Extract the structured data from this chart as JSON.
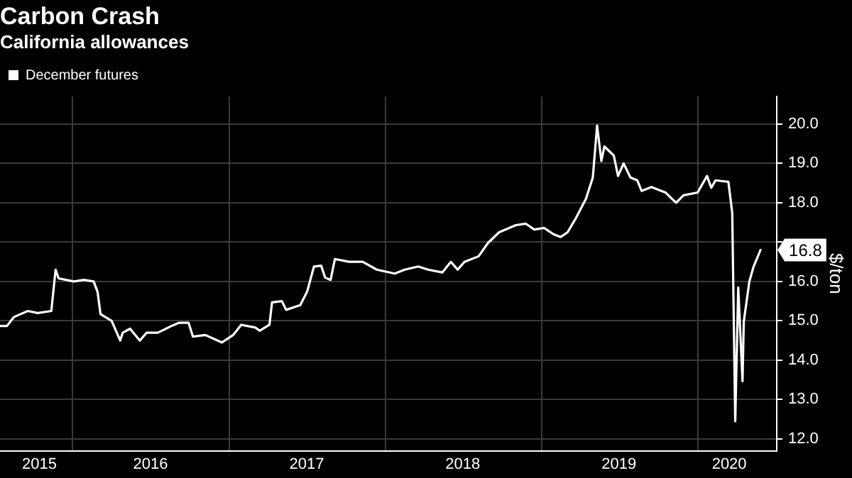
{
  "chart_data": {
    "type": "line",
    "title": "Carbon Crash",
    "subtitle": "California allowances",
    "ylabel": "$/ton",
    "legend": "top left",
    "grid": true,
    "marker": "none",
    "line_style": "solid",
    "x": [
      "2015-07-15",
      "2015-07-31",
      "2015-08-17",
      "2015-09-18",
      "2015-10-11",
      "2015-11-12",
      "2015-11-22",
      "2015-11-29",
      "2016-01-04",
      "2016-01-27",
      "2016-02-19",
      "2016-02-28",
      "2016-03-06",
      "2016-04-01",
      "2016-04-21",
      "2016-04-27",
      "2016-05-14",
      "2016-06-06",
      "2016-06-22",
      "2016-07-18",
      "2016-08-19",
      "2016-09-05",
      "2016-09-28",
      "2016-10-08",
      "2016-11-06",
      "2016-12-15",
      "2017-01-10",
      "2017-01-29",
      "2017-03-03",
      "2017-03-13",
      "2017-04-05",
      "2017-04-11",
      "2017-05-04",
      "2017-05-14",
      "2017-06-16",
      "2017-07-02",
      "2017-07-18",
      "2017-08-04",
      "2017-08-13",
      "2017-08-26",
      "2017-09-05",
      "2017-10-08",
      "2017-11-09",
      "2017-12-12",
      "2018-01-23",
      "2018-02-15",
      "2018-03-19",
      "2018-04-11",
      "2018-05-14",
      "2018-06-03",
      "2018-06-19",
      "2018-07-05",
      "2018-08-07",
      "2018-08-29",
      "2018-09-24",
      "2018-11-02",
      "2018-11-25",
      "2018-12-15",
      "2019-01-07",
      "2019-01-29",
      "2019-02-15",
      "2019-03-03",
      "2019-03-23",
      "2019-04-15",
      "2019-05-01",
      "2019-05-11",
      "2019-05-21",
      "2019-05-28",
      "2019-06-19",
      "2019-06-29",
      "2019-07-12",
      "2019-07-28",
      "2019-08-13",
      "2019-08-23",
      "2019-09-15",
      "2019-10-18",
      "2019-11-02",
      "2019-11-12",
      "2019-11-29",
      "2020-01-01",
      "2020-01-23",
      "2020-02-02",
      "2020-02-12",
      "2020-03-13",
      "2020-03-22",
      "2020-03-29",
      "2020-04-05",
      "2020-04-15",
      "2020-04-18",
      "2020-05-01",
      "2020-05-11",
      "2020-05-27"
    ],
    "series": [
      {
        "name": "December futures",
        "color": "#ffffff",
        "values": [
          14.87,
          14.87,
          15.1,
          15.25,
          15.2,
          15.25,
          16.3,
          16.08,
          16.0,
          16.04,
          16.0,
          15.74,
          15.17,
          15.0,
          14.5,
          14.7,
          14.8,
          14.5,
          14.7,
          14.7,
          14.87,
          14.95,
          14.95,
          14.6,
          14.64,
          14.45,
          14.64,
          14.9,
          14.83,
          14.75,
          14.9,
          15.47,
          15.5,
          15.28,
          15.4,
          15.74,
          16.38,
          16.4,
          16.1,
          16.04,
          16.57,
          16.5,
          16.5,
          16.3,
          16.2,
          16.3,
          16.38,
          16.3,
          16.23,
          16.5,
          16.3,
          16.5,
          16.64,
          16.98,
          17.25,
          17.43,
          17.47,
          17.32,
          17.36,
          17.2,
          17.13,
          17.25,
          17.62,
          18.1,
          18.64,
          19.96,
          19.06,
          19.43,
          19.2,
          18.68,
          19.0,
          18.64,
          18.57,
          18.3,
          18.4,
          18.26,
          18.1,
          18.0,
          18.19,
          18.26,
          18.68,
          18.38,
          18.57,
          18.53,
          17.74,
          12.45,
          15.85,
          13.47,
          14.98,
          16.0,
          16.38,
          16.8
        ]
      }
    ],
    "xlim": [
      "2015-07-15",
      "2020-07-04"
    ],
    "xticks": [
      {
        "value": "2015-10-15",
        "label": "2015"
      },
      {
        "value": "2016-01-01",
        "label": null
      },
      {
        "value": "2016-07-01",
        "label": "2016"
      },
      {
        "value": "2017-01-01",
        "label": null
      },
      {
        "value": "2017-07-01",
        "label": "2017"
      },
      {
        "value": "2018-01-01",
        "label": null
      },
      {
        "value": "2018-07-01",
        "label": "2018"
      },
      {
        "value": "2019-01-01",
        "label": null
      },
      {
        "value": "2019-07-01",
        "label": "2019"
      },
      {
        "value": "2020-01-01",
        "label": null
      },
      {
        "value": "2020-03-15",
        "label": "2020"
      }
    ],
    "ylim": [
      11.7,
      20.7
    ],
    "yticks": [
      {
        "value": 12,
        "label": "12.0"
      },
      {
        "value": 13,
        "label": "13.0"
      },
      {
        "value": 14,
        "label": "14.0"
      },
      {
        "value": 15,
        "label": "15.0"
      },
      {
        "value": 16,
        "label": "16.0"
      },
      {
        "value": 17,
        "label": null
      },
      {
        "value": 18,
        "label": "18.0"
      },
      {
        "value": 19,
        "label": "19.0"
      },
      {
        "value": 20,
        "label": "20.0"
      }
    ],
    "annotations": [
      {
        "text": "16.8",
        "x": "2020-05-27",
        "y": 16.8
      }
    ]
  }
}
